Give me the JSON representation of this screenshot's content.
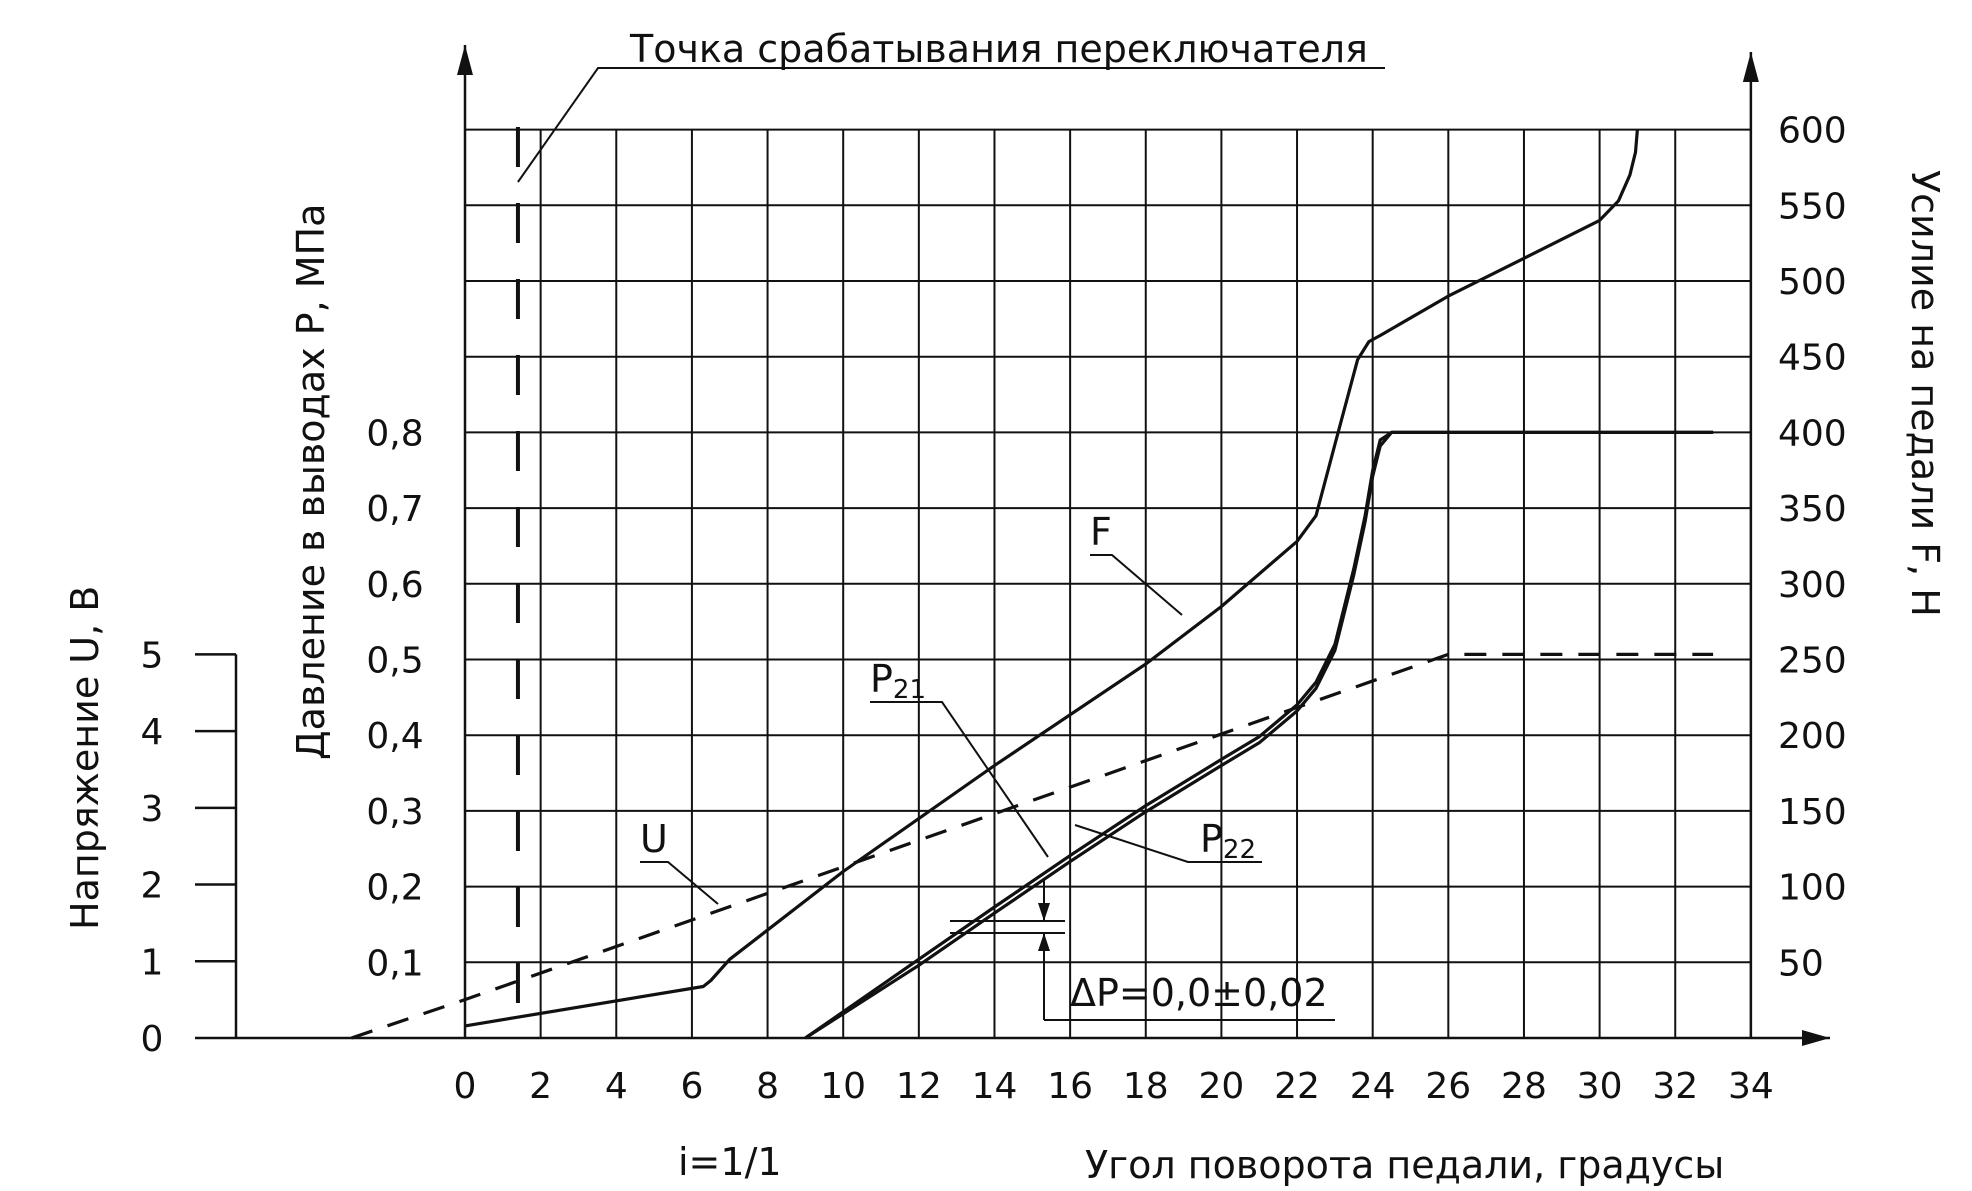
{
  "chart_data": {
    "type": "line",
    "title": "",
    "xlabel": "Угол поворота педали, градусы",
    "xlim": [
      0,
      34
    ],
    "xticks": [
      "0",
      "2",
      "4",
      "6",
      "8",
      "10",
      "12",
      "14",
      "16",
      "18",
      "20",
      "22",
      "24",
      "26",
      "28",
      "30",
      "32",
      "34"
    ],
    "grid": true,
    "scale_note": "i=1/1",
    "axes": {
      "voltage": {
        "label": "Напряжение U, В",
        "ylim": [
          0,
          5
        ],
        "ticks": [
          "0",
          "1",
          "2",
          "3",
          "4",
          "5"
        ]
      },
      "pressure": {
        "label": "Давление в выводах P, МПа",
        "ylim": [
          0,
          0.8
        ],
        "ticks": [
          "0,1",
          "0,2",
          "0,3",
          "0,4",
          "0,5",
          "0,6",
          "0,7",
          "0,8"
        ]
      },
      "force": {
        "label": "Усилие на педали F, Н",
        "ylim": [
          0,
          600
        ],
        "ticks": [
          "50",
          "100",
          "150",
          "200",
          "250",
          "300",
          "350",
          "400",
          "450",
          "500",
          "550",
          "600"
        ]
      }
    },
    "series": [
      {
        "name": "F",
        "axis": "force",
        "style": "solid",
        "x": [
          0,
          6.3,
          6.5,
          7,
          10,
          14,
          18,
          20,
          22,
          22.5,
          23,
          23.6,
          23.9,
          24.2,
          26,
          28,
          30,
          30.5,
          30.8,
          30.95,
          31
        ],
        "y": [
          8,
          34,
          38,
          52,
          110,
          180,
          247,
          285,
          328,
          345,
          392,
          448,
          460,
          464,
          490,
          515,
          540,
          553,
          570,
          585,
          600
        ]
      },
      {
        "name": "P21",
        "axis": "pressure",
        "style": "solid",
        "x": [
          9,
          12,
          14,
          16,
          18,
          20,
          21,
          22,
          22.5,
          23,
          23.5,
          23.8,
          24,
          24.2,
          24.5,
          26,
          28,
          30,
          32,
          33
        ],
        "y": [
          0.0,
          0.104,
          0.173,
          0.241,
          0.307,
          0.368,
          0.398,
          0.44,
          0.47,
          0.52,
          0.62,
          0.69,
          0.75,
          0.79,
          0.8,
          0.8,
          0.8,
          0.8,
          0.8,
          0.8
        ]
      },
      {
        "name": "P22",
        "axis": "pressure",
        "style": "solid",
        "x": [
          9,
          12,
          14,
          16,
          18,
          20,
          21,
          22,
          22.5,
          23,
          23.5,
          23.8,
          24,
          24.2,
          24.5,
          26,
          28,
          30,
          32,
          33
        ],
        "y": [
          0.0,
          0.096,
          0.165,
          0.233,
          0.299,
          0.36,
          0.39,
          0.432,
          0.462,
          0.512,
          0.612,
          0.682,
          0.742,
          0.782,
          0.8,
          0.8,
          0.8,
          0.8,
          0.8,
          0.8
        ]
      },
      {
        "name": "U",
        "axis": "voltage",
        "style": "dashed",
        "x": [
          -3,
          0,
          26,
          33
        ],
        "y": [
          0,
          0.5,
          5,
          5
        ]
      }
    ],
    "annotations": [
      {
        "text": "Точка срабатывания переключателя",
        "x": 1.4
      },
      {
        "text": "ΔP=0,0±0,02"
      }
    ]
  }
}
